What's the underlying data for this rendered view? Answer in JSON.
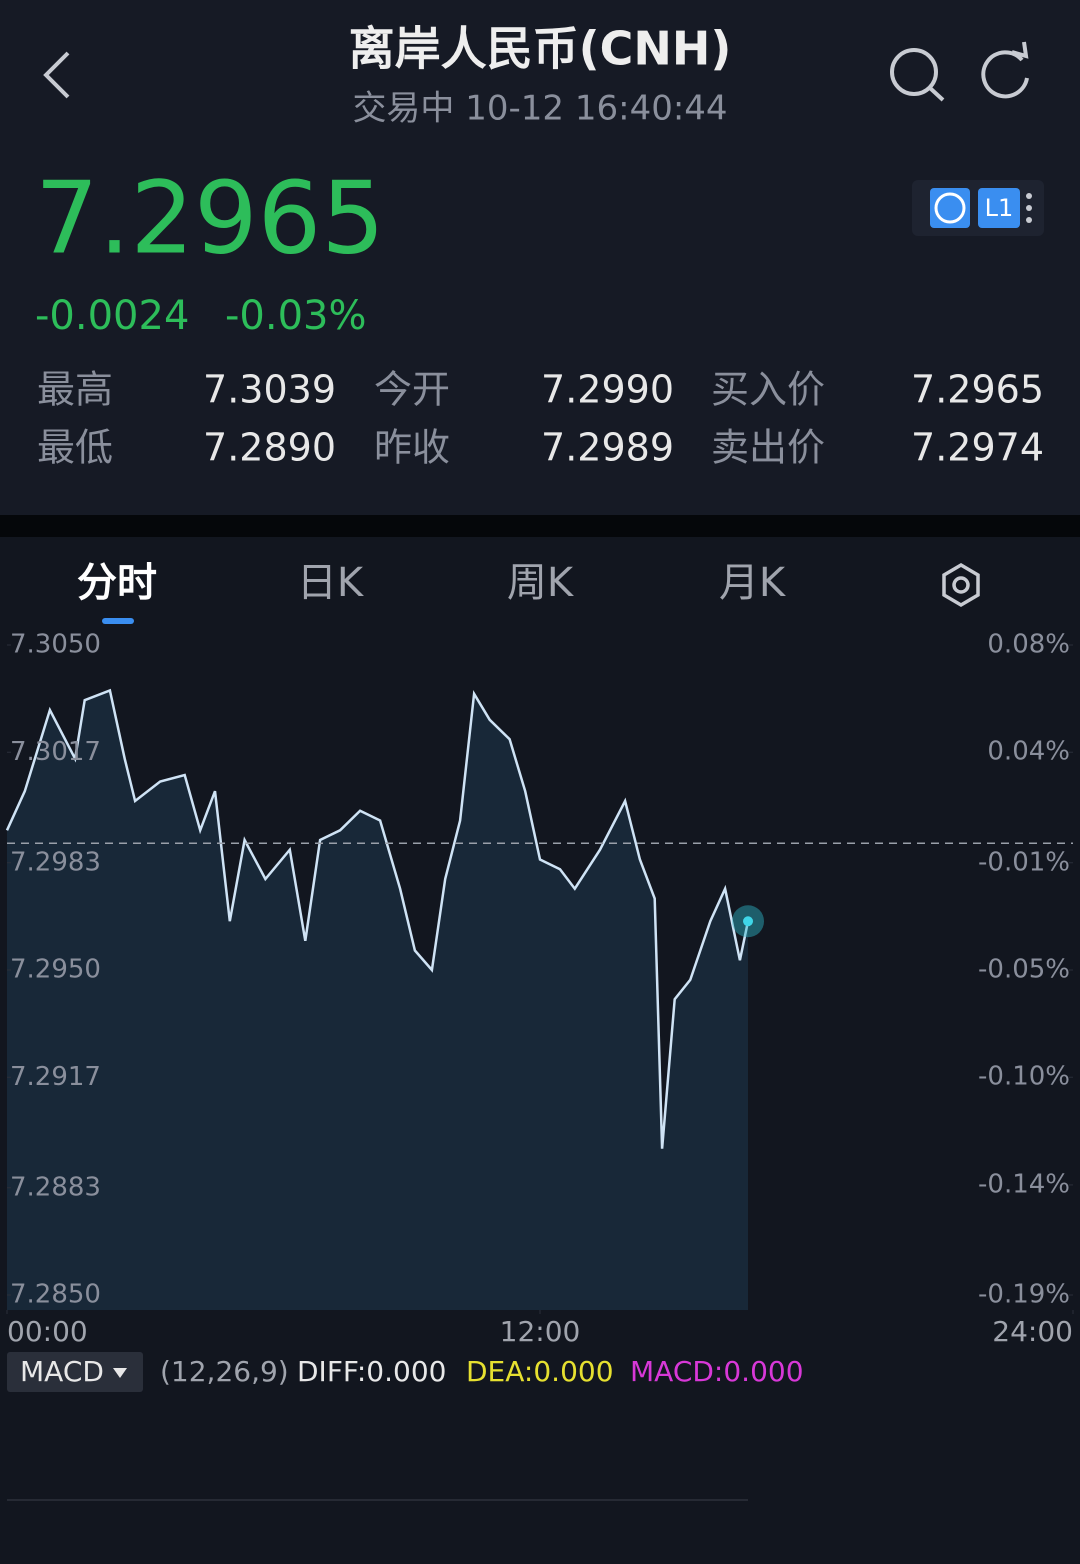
{
  "header": {
    "title": "离岸人民币(CNH)",
    "status": "交易中 10-12 16:40:44"
  },
  "quote": {
    "price": "7.2965",
    "change": "-0.0024",
    "change_pct": "-0.03%",
    "badge": "L1"
  },
  "stats": {
    "rows": [
      [
        "最高",
        "7.3039",
        "今开",
        "7.2990",
        "买入价",
        "7.2965"
      ],
      [
        "最低",
        "7.2890",
        "昨收",
        "7.2989",
        "卖出价",
        "7.2974"
      ]
    ]
  },
  "tabs": [
    "分时",
    "日K",
    "周K",
    "月K"
  ],
  "chart_data": {
    "type": "line",
    "color": "#cfe3f5",
    "fill": "#1a2c3d",
    "x": [
      0,
      24,
      58,
      92,
      105,
      139,
      159,
      173,
      207,
      240,
      261,
      281,
      301,
      321,
      349,
      382,
      403,
      423,
      450,
      477,
      504,
      531,
      551,
      574,
      592,
      612,
      631,
      652,
      679,
      700,
      720,
      747,
      767,
      801,
      835,
      855,
      875,
      885,
      902,
      923,
      950,
      970,
      990,
      1001
    ],
    "values": [
      7.2993,
      7.3005,
      7.303,
      7.3015,
      7.3033,
      7.3036,
      7.3015,
      7.3002,
      7.3008,
      7.301,
      7.2993,
      7.3005,
      7.2965,
      7.299,
      7.2978,
      7.2987,
      7.2959,
      7.299,
      7.2993,
      7.2999,
      7.2996,
      7.2975,
      7.2956,
      7.295,
      7.2978,
      7.2996,
      7.3035,
      7.3027,
      7.3021,
      7.3005,
      7.2984,
      7.2981,
      7.2975,
      7.2987,
      7.3002,
      7.2984,
      7.2972,
      7.2895,
      7.2941,
      7.2947,
      7.2965,
      7.2975,
      7.2953,
      7.2965
    ],
    "xlim": [
      0,
      1440
    ],
    "xticks": [
      {
        "value": 0,
        "label": "00:00"
      },
      {
        "value": 720,
        "label": "12:00"
      },
      {
        "value": 1440,
        "label": "24:00"
      }
    ],
    "ylim": [
      7.285,
      7.305
    ],
    "yticks": [
      {
        "value": 7.305,
        "label": "7.3050"
      },
      {
        "value": 7.3017,
        "label": "7.3017"
      },
      {
        "value": 7.2983,
        "label": "7.2983"
      },
      {
        "value": 7.295,
        "label": "7.2950"
      },
      {
        "value": 7.2917,
        "label": "7.2917"
      },
      {
        "value": 7.2883,
        "label": "7.2883"
      },
      {
        "value": 7.285,
        "label": "7.2850"
      }
    ],
    "y2lim": [
      -0.1904,
      0.0836
    ],
    "y2ticks": [
      {
        "value": 0.0836,
        "label": "0.08%"
      },
      {
        "value": 0.0384,
        "label": "0.04%"
      },
      {
        "value": -0.0082,
        "label": "-0.01%"
      },
      {
        "value": -0.0534,
        "label": "-0.05%"
      },
      {
        "value": -0.0986,
        "label": "-0.10%"
      },
      {
        "value": -0.144,
        "label": "-0.14%"
      },
      {
        "value": -0.1904,
        "label": "-0.19%"
      }
    ],
    "baseline": 7.2989,
    "grid": false
  },
  "macd": {
    "indicator": "MACD",
    "params": "(12,26,9)",
    "diff": "DIFF:0.000",
    "dea": "DEA:0.000",
    "macd": "MACD:0.000"
  }
}
